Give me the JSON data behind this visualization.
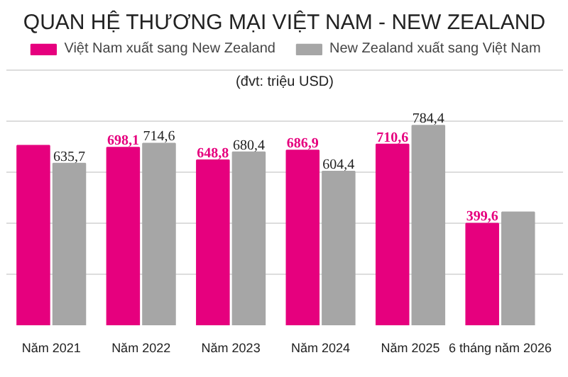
{
  "chart_data": {
    "type": "bar",
    "title": "QUAN HỆ THƯƠNG MẠI VIỆT NAM - NEW ZEALAND",
    "subtitle": "(đvt: triệu USD)",
    "categories": [
      "Năm 2021",
      "Năm 2022",
      "Năm 2023",
      "Năm 2024",
      "Năm 2025",
      "6 tháng năm 2026"
    ],
    "series": [
      {
        "name": "Việt Nam xuất sang New Zealand",
        "color": "#e6007e",
        "values": [
          706,
          698.1,
          648.8,
          686.9,
          710.6,
          399.6
        ],
        "value_labels": [
          null,
          "698,1",
          "648,8",
          "686,9",
          "710,6",
          "399,6"
        ]
      },
      {
        "name": "New Zealand xuất sang Việt Nam",
        "color": "#a6a6a6",
        "values": [
          635.7,
          714.6,
          680.4,
          604.4,
          784.4,
          444
        ],
        "value_labels": [
          "635,7",
          "714,6",
          "680,4",
          "604,4",
          "784,4",
          null
        ]
      }
    ],
    "tick_labels": "x",
    "grid": "y",
    "legend": "top"
  }
}
